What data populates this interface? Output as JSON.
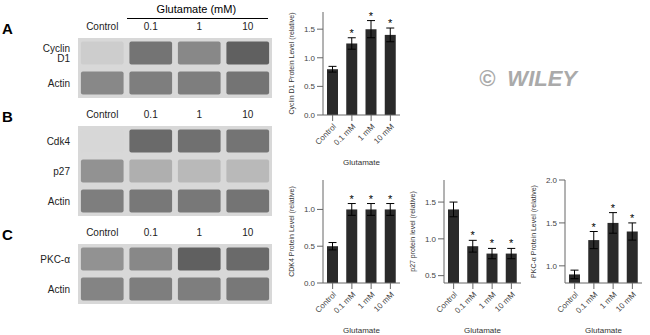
{
  "chart_data": [
    {
      "type": "blot",
      "title": "A",
      "annotations": [
        "Glutamate (mM)"
      ],
      "categories": [
        "Control",
        "0.1",
        "1",
        "10"
      ],
      "series": [
        {
          "name": "Cyclin D1",
          "values": [
            0.25,
            0.7,
            0.6,
            0.8
          ]
        },
        {
          "name": "Actin",
          "values": [
            0.6,
            0.65,
            0.65,
            0.7
          ]
        }
      ]
    },
    {
      "type": "bar",
      "categories": [
        "Control",
        "0.1 mM",
        "1 mM",
        "10 mM"
      ],
      "values": [
        0.8,
        1.25,
        1.5,
        1.4
      ],
      "errors": [
        0.05,
        0.1,
        0.15,
        0.12
      ],
      "color": "#2a2a2a",
      "xlabel": "Glutamate",
      "ylabel": "Cyclin D1 Protein Level (relative)",
      "ylim": [
        0,
        1.8
      ],
      "yticks": [
        {
          "value": 0,
          "label": "0.0"
        },
        0.5,
        {
          "value": 1,
          "label": "1.0"
        },
        1.5
      ],
      "annotations": [
        {
          "text": "*",
          "category": "0.1 mM"
        },
        {
          "text": "*",
          "category": "1 mM"
        },
        {
          "text": "*",
          "category": "10 mM"
        },
        {
          "text": "©  WILEY"
        }
      ]
    },
    {
      "type": "blot",
      "title": "B",
      "categories": [
        "Control",
        "0.1",
        "1",
        "10"
      ],
      "series": [
        {
          "name": "Cdk4",
          "values": [
            0.2,
            0.75,
            0.72,
            0.7
          ]
        },
        {
          "name": "p27",
          "values": [
            0.55,
            0.4,
            0.35,
            0.35
          ]
        },
        {
          "name": "Actin",
          "values": [
            0.65,
            0.68,
            0.68,
            0.7
          ]
        }
      ]
    },
    {
      "type": "bar",
      "categories": [
        "Control",
        "0.1 mM",
        "1 mM",
        "10 mM"
      ],
      "values": [
        0.5,
        1.0,
        1.0,
        1.0
      ],
      "errors": [
        0.05,
        0.08,
        0.08,
        0.08
      ],
      "color": "#2a2a2a",
      "xlabel": "Glutamate",
      "ylabel": "CDK4 Protein Level (relative)",
      "ylim": [
        0,
        1.4
      ],
      "yticks": [
        {
          "value": 0,
          "label": "0.0"
        },
        0.5,
        {
          "value": 1,
          "label": "1.0"
        }
      ],
      "annotations": [
        {
          "text": "*",
          "category": "0.1 mM"
        },
        {
          "text": "*",
          "category": "1 mM"
        },
        {
          "text": "*",
          "category": "10 mM"
        }
      ]
    },
    {
      "type": "bar",
      "categories": [
        "Control",
        "0.1 mM",
        "1 mM",
        "10 mM"
      ],
      "values": [
        1.4,
        0.9,
        0.8,
        0.8
      ],
      "errors": [
        0.1,
        0.08,
        0.07,
        0.07
      ],
      "color": "#2a2a2a",
      "xlabel": "Glutamate",
      "ylabel": "p27 protein level (relative)",
      "ylim": [
        0.4,
        1.8
      ],
      "yticks": [
        0.5,
        {
          "value": 1,
          "label": "1.0"
        },
        1.5
      ],
      "annotations": [
        {
          "text": "*",
          "category": "0.1 mM"
        },
        {
          "text": "*",
          "category": "1 mM"
        },
        {
          "text": "*",
          "category": "10 mM"
        }
      ]
    },
    {
      "type": "blot",
      "title": "C",
      "categories": [
        "Control",
        "0.1",
        "1",
        "10"
      ],
      "series": [
        {
          "name": "PKC-α",
          "values": [
            0.55,
            0.6,
            0.8,
            0.75
          ]
        },
        {
          "name": "Actin",
          "values": [
            0.62,
            0.65,
            0.65,
            0.68
          ]
        }
      ]
    },
    {
      "type": "bar",
      "categories": [
        "Control",
        "0.1 mM",
        "1 mM",
        "10 mM"
      ],
      "values": [
        0.9,
        1.3,
        1.5,
        1.4
      ],
      "errors": [
        0.05,
        0.1,
        0.12,
        0.1
      ],
      "color": "#2a2a2a",
      "xlabel": "Glutamate",
      "ylabel": "PKC-α Protein Level (relative)",
      "ylim": [
        0.8,
        2.0
      ],
      "yticks": [
        {
          "value": 1,
          "label": "1.0"
        },
        1.5,
        {
          "value": 2,
          "label": "2.0"
        }
      ],
      "annotations": [
        {
          "text": "*",
          "category": "0.1 mM"
        },
        {
          "text": "*",
          "category": "1 mM"
        },
        {
          "text": "*",
          "category": "10 mM"
        }
      ]
    }
  ]
}
